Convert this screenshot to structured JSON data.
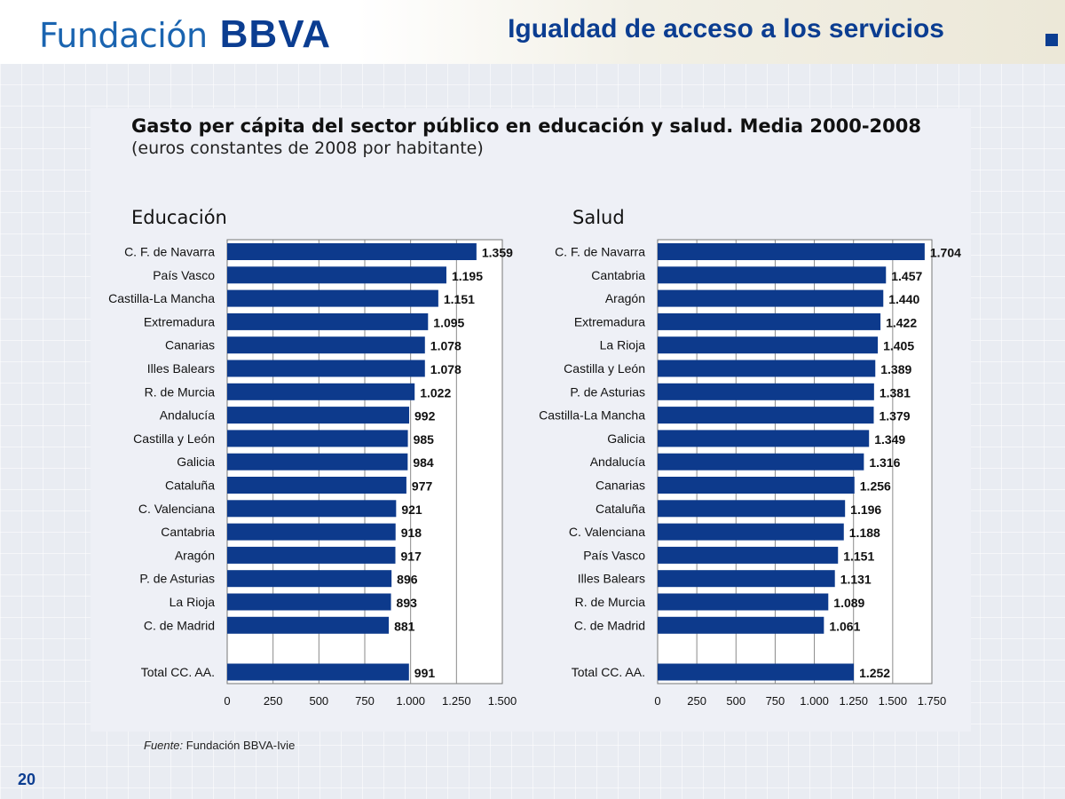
{
  "header": {
    "logo_text": "Fundación",
    "logo_brand": "BBVA",
    "page_title": "Igualdad de acceso a los servicios"
  },
  "colors": {
    "bar": "#0d3a8c",
    "title": "#0b3d91"
  },
  "chart_title": "Gasto per cápita del sector público en educación y salud. Media 2000-2008",
  "chart_subtitle": "(euros constantes de 2008 por habitante)",
  "source_label": "Fuente:",
  "source_text": " Fundación BBVA-Ivie",
  "page_number": "20",
  "chart_data": [
    {
      "type": "bar",
      "orientation": "horizontal",
      "title": "Educación",
      "categories": [
        "C. F. de Navarra",
        "País Vasco",
        "Castilla-La Mancha",
        "Extremadura",
        "Canarias",
        "Illes Balears",
        "R. de Murcia",
        "Andalucía",
        "Castilla y León",
        "Galicia",
        "Cataluña",
        "C. Valenciana",
        "Cantabria",
        "Aragón",
        "P. de Asturias",
        "La Rioja",
        "C. de Madrid",
        "Total CC. AA."
      ],
      "values": [
        1359,
        1195,
        1151,
        1095,
        1078,
        1078,
        1022,
        992,
        985,
        984,
        977,
        921,
        918,
        917,
        896,
        893,
        881,
        991
      ],
      "value_labels": [
        "1.359",
        "1.195",
        "1.151",
        "1.095",
        "1.078",
        "1.078",
        "1.022",
        "992",
        "985",
        "984",
        "977",
        "921",
        "918",
        "917",
        "896",
        "893",
        "881",
        "991"
      ],
      "xlim": [
        0,
        1500
      ],
      "ticks": [
        0,
        250,
        500,
        750,
        1000,
        1250,
        1500
      ],
      "tick_labels": [
        "0",
        "250",
        "500",
        "750",
        "1.000",
        "1.250",
        "1.500"
      ],
      "grid": true
    },
    {
      "type": "bar",
      "orientation": "horizontal",
      "title": "Salud",
      "categories": [
        "C. F. de Navarra",
        "Cantabria",
        "Aragón",
        "Extremadura",
        "La Rioja",
        "Castilla y León",
        "P. de Asturias",
        "Castilla-La Mancha",
        "Galicia",
        "Andalucía",
        "Canarias",
        "Cataluña",
        "C. Valenciana",
        "País Vasco",
        "Illes Balears",
        "R. de Murcia",
        "C. de Madrid",
        "Total CC. AA."
      ],
      "values": [
        1704,
        1457,
        1440,
        1422,
        1405,
        1389,
        1381,
        1379,
        1349,
        1316,
        1256,
        1196,
        1188,
        1151,
        1131,
        1089,
        1061,
        1252
      ],
      "value_labels": [
        "1.704",
        "1.457",
        "1.440",
        "1.422",
        "1.405",
        "1.389",
        "1.381",
        "1.379",
        "1.349",
        "1.316",
        "1.256",
        "1.196",
        "1.188",
        "1.151",
        "1.131",
        "1.089",
        "1.061",
        "1.252"
      ],
      "xlim": [
        0,
        1750
      ],
      "ticks": [
        0,
        250,
        500,
        750,
        1000,
        1250,
        1500,
        1750
      ],
      "tick_labels": [
        "0",
        "250",
        "500",
        "750",
        "1.000",
        "1.250",
        "1.500",
        "1.750"
      ],
      "grid": true
    }
  ]
}
